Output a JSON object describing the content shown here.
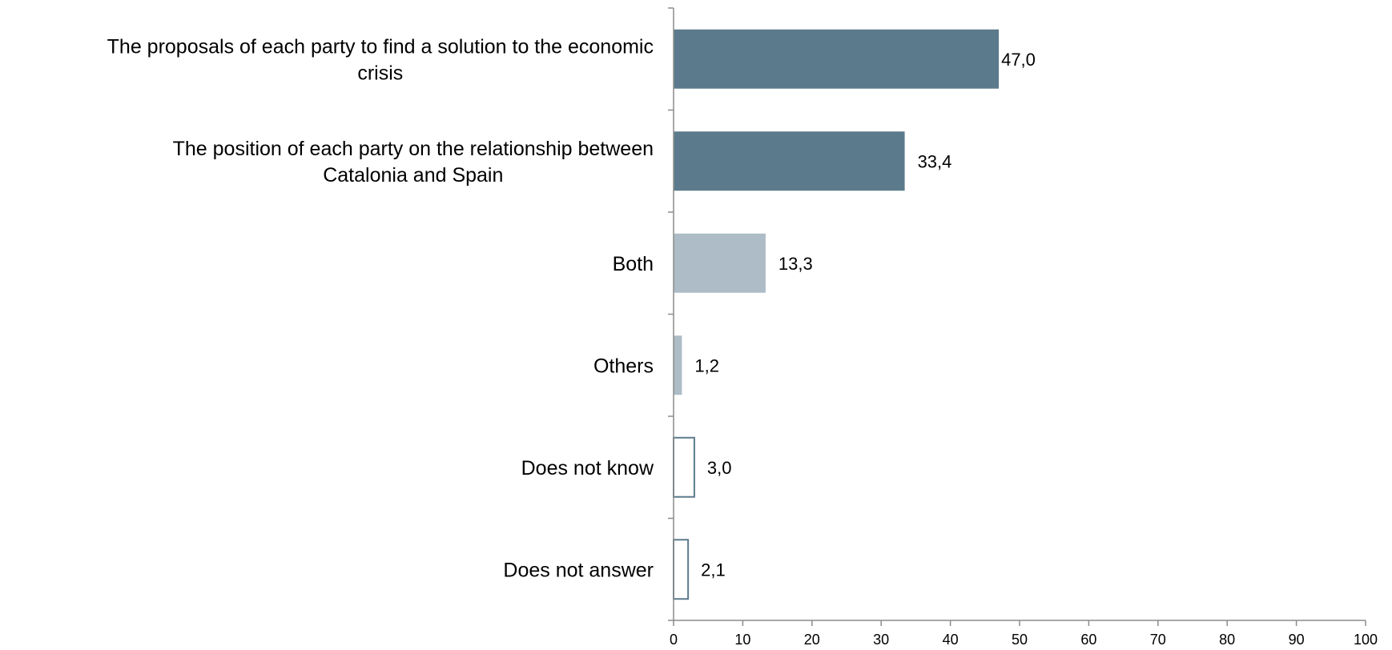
{
  "chart_data": {
    "type": "bar",
    "orientation": "horizontal",
    "title": "",
    "xlabel": "",
    "ylabel": "",
    "xlim": [
      0,
      100
    ],
    "x_ticks": [
      0,
      10,
      20,
      30,
      40,
      50,
      60,
      70,
      80,
      90,
      100
    ],
    "grid": false,
    "legend": "none",
    "categories": [
      [
        "The proposals of each party to find a solution to the economic",
        "crisis"
      ],
      [
        "The position of each party on the relationship between",
        "Catalonia and Spain"
      ],
      [
        "Both"
      ],
      [
        "Others"
      ],
      [
        "Does not know"
      ],
      [
        "Does not answer"
      ]
    ],
    "values": [
      47.0,
      33.4,
      13.3,
      1.2,
      3.0,
      2.1
    ],
    "value_labels": [
      "47,0",
      "33,4",
      "13,3",
      "1,2",
      "3,0",
      "2,1"
    ],
    "bar_styles": [
      "dark",
      "dark",
      "light",
      "light",
      "outline",
      "outline"
    ],
    "colors": {
      "dark": "#5b7b8c",
      "light": "#adbcc6",
      "outline_stroke": "#5b7b8c",
      "axis": "#8c8c8c"
    }
  }
}
